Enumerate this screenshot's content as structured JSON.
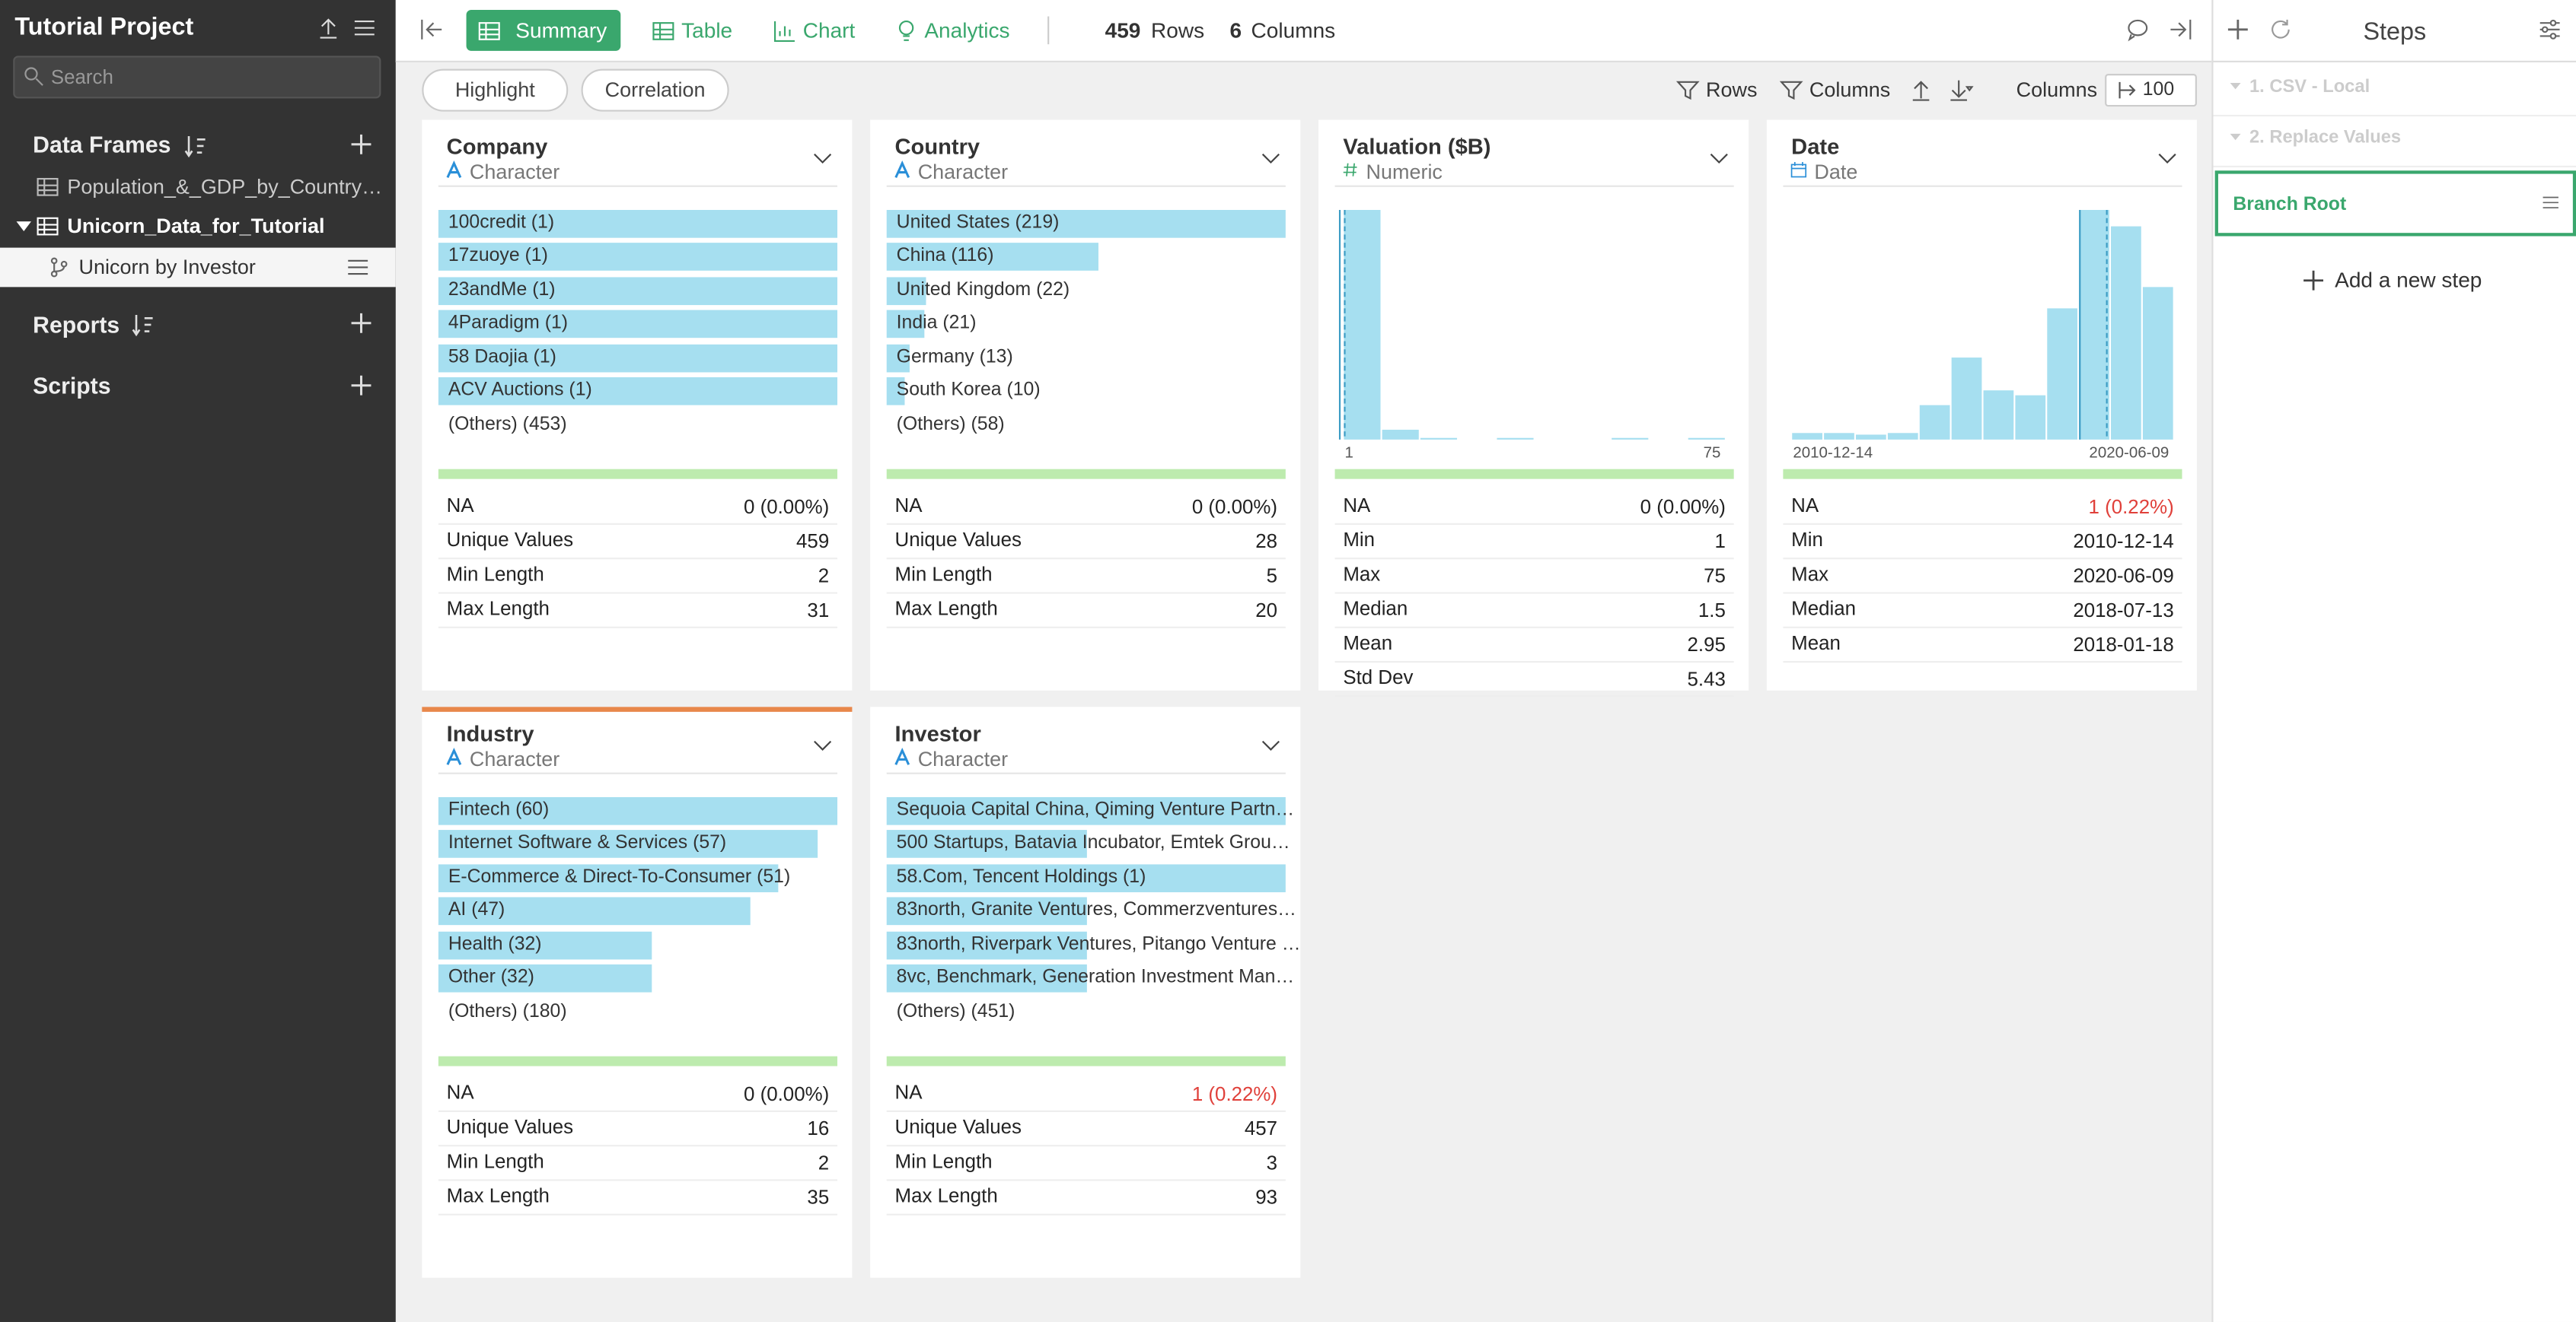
{
  "sidebar": {
    "project": "Tutorial Project",
    "search": "Search",
    "data_frames": "Data Frames",
    "frames": [
      "Population_&_GDP_by_Country…",
      "Unicorn_Data_for_Tutorial"
    ],
    "branch": "Unicorn by Investor",
    "reports": "Reports",
    "scripts": "Scripts"
  },
  "toolbar": {
    "tabs": [
      "Summary",
      "Table",
      "Chart",
      "Analytics"
    ],
    "rows": "459",
    "rows_label": "Rows",
    "columns": "6",
    "columns_label": "Columns"
  },
  "subbar": {
    "buttons": [
      "Highlight",
      "Correlation"
    ],
    "filters": [
      "Rows",
      "Columns"
    ],
    "columns_label": "Columns",
    "columns_value": "100"
  },
  "cards": [
    {
      "name": "Company",
      "type": "Character",
      "items": [
        {
          "name": "100credit",
          "count": 1,
          "count_label": "(1)"
        },
        {
          "name": "17zuoye",
          "count": 1,
          "count_label": "(1)"
        },
        {
          "name": "23andMe",
          "count": 1,
          "count_label": "(1)"
        },
        {
          "name": "4Paradigm",
          "count": 1,
          "count_label": "(1)"
        },
        {
          "name": "58 Daojia",
          "count": 1,
          "count_label": "(1)"
        },
        {
          "name": "ACV Auctions",
          "count": 1,
          "count_label": "(1)"
        }
      ],
      "others": "(Others) (453)",
      "stats": [
        [
          "NA",
          "0 (0.00%)"
        ],
        [
          "Unique Values",
          "459"
        ],
        [
          "Min Length",
          "2"
        ],
        [
          "Max Length",
          "31"
        ]
      ]
    },
    {
      "name": "Country",
      "type": "Character",
      "items": [
        {
          "name": "United States",
          "count": 219,
          "count_label": "(219)"
        },
        {
          "name": "China",
          "count": 116,
          "count_label": "(116)"
        },
        {
          "name": "United Kingdom",
          "count": 22,
          "count_label": "(22)"
        },
        {
          "name": "India",
          "count": 21,
          "count_label": "(21)"
        },
        {
          "name": "Germany",
          "count": 13,
          "count_label": "(13)"
        },
        {
          "name": "South Korea",
          "count": 10,
          "count_label": "(10)"
        }
      ],
      "others": "(Others) (58)",
      "stats": [
        [
          "NA",
          "0 (0.00%)"
        ],
        [
          "Unique Values",
          "28"
        ],
        [
          "Min Length",
          "5"
        ],
        [
          "Max Length",
          "20"
        ]
      ]
    },
    {
      "name": "Valuation ($B)",
      "type": "Numeric",
      "histogram": {
        "counts": [
          140,
          6,
          1,
          0,
          1,
          0,
          0,
          1,
          0,
          1
        ],
        "axis": [
          "1",
          "75"
        ]
      },
      "stats": [
        [
          "NA",
          "0 (0.00%)"
        ],
        [
          "Min",
          "1"
        ],
        [
          "Max",
          "75"
        ],
        [
          "Median",
          "1.5"
        ],
        [
          "Mean",
          "2.95"
        ],
        [
          "Std Dev",
          "5.43"
        ]
      ]
    },
    {
      "name": "Date",
      "type": "Date",
      "histogram": {
        "counts": [
          4,
          4,
          3,
          4,
          21,
          50,
          30,
          27,
          80,
          140,
          130,
          93
        ],
        "axis": [
          "2010-12-14",
          "2020-06-09"
        ]
      },
      "na_alert": true,
      "stats": [
        [
          "NA",
          "1 (0.22%)"
        ],
        [
          "Min",
          "2010-12-14"
        ],
        [
          "Max",
          "2020-06-09"
        ],
        [
          "Median",
          "2018-07-13"
        ],
        [
          "Mean",
          "2018-01-18"
        ]
      ]
    },
    {
      "name": "Industry",
      "type": "Character",
      "highlight": true,
      "items": [
        {
          "name": "Fintech",
          "count": 60,
          "count_label": "(60)"
        },
        {
          "name": "Internet Software & Services",
          "count": 57,
          "count_label": "(57)"
        },
        {
          "name": "E-Commerce & Direct-To-Consumer",
          "count": 51,
          "count_label": "(51)"
        },
        {
          "name": "AI",
          "count": 47,
          "count_label": "(47)"
        },
        {
          "name": "Health",
          "count": 32,
          "count_label": "(32)"
        },
        {
          "name": "Other",
          "count": 32,
          "count_label": "(32)"
        }
      ],
      "others": "(Others) (180)",
      "stats": [
        [
          "NA",
          "0 (0.00%)"
        ],
        [
          "Unique Values",
          "16"
        ],
        [
          "Min Length",
          "2"
        ],
        [
          "Max Length",
          "35"
        ]
      ]
    },
    {
      "name": "Investor",
      "type": "Character",
      "items": [
        {
          "name": "Sequoia Capital China, Qiming Venture Partn…"
        },
        {
          "name": "500 Startups, Batavia Incubator, Emtek Grou…"
        },
        {
          "name": "58.Com, Tencent Holdings",
          "count": 1,
          "count_label": "(1)"
        },
        {
          "name": "83north, Granite Ventures, Commerzventures…"
        },
        {
          "name": "83north, Riverpark Ventures, Pitango Venture …"
        },
        {
          "name": "8vc, Benchmark, Generation Investment Man…"
        }
      ],
      "others": "(Others) (451)",
      "na_alert": true,
      "stats": [
        [
          "NA",
          "1 (0.22%)"
        ],
        [
          "Unique Values",
          "457"
        ],
        [
          "Min Length",
          "3"
        ],
        [
          "Max Length",
          "93"
        ]
      ]
    }
  ],
  "steps": {
    "title": "Steps",
    "items": [
      "1. CSV - Local",
      "2. Replace Values"
    ],
    "branch": "Branch Root",
    "add": "Add a new step"
  }
}
